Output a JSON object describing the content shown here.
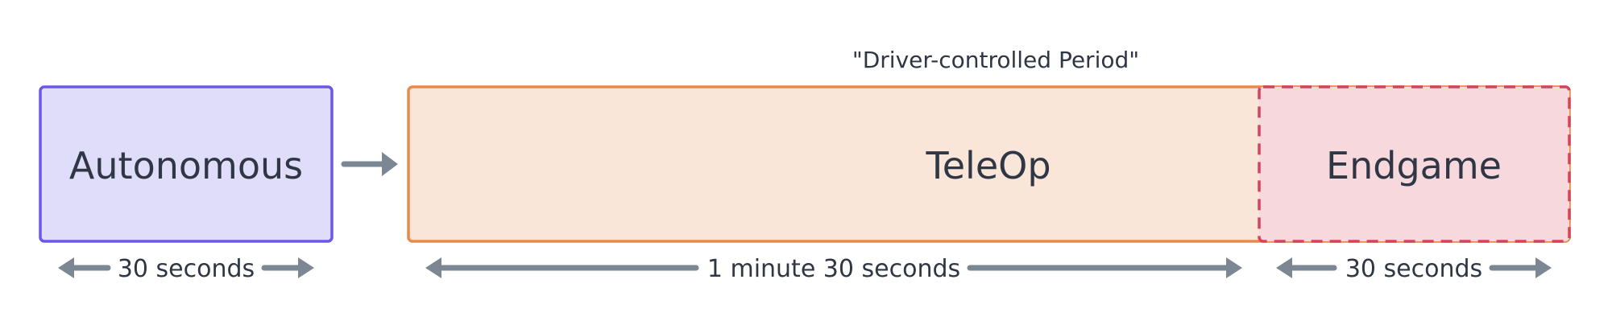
{
  "period_label": "\"Driver-controlled Period\"",
  "phases": {
    "autonomous": {
      "label": "Autonomous",
      "duration": "30 seconds"
    },
    "teleop": {
      "label": "TeleOp",
      "duration": "1 minute 30 seconds"
    },
    "endgame": {
      "label": "Endgame",
      "duration": "30 seconds"
    }
  },
  "colors": {
    "autonomous_fill": "#e0ddfb",
    "autonomous_border": "#6a59e8",
    "teleop_fill": "#fae6d9",
    "teleop_border": "#ea8a4a",
    "endgame_fill": "#f6d8dd",
    "endgame_border": "#d5435a",
    "arrow": "#7b8893",
    "text": "#2f3745"
  }
}
